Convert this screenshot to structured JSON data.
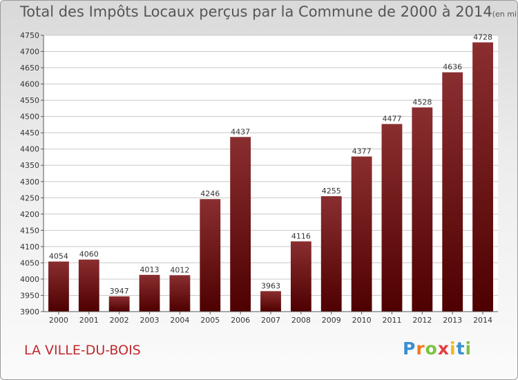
{
  "title": "Total des Impôts Locaux perçus par la Commune de 2000 à 2014",
  "unit_note": "(en milliers d'€)",
  "commune": "LA VILLE-DU-BOIS",
  "logo": {
    "letters": [
      "P",
      "r",
      "o",
      "x",
      "i",
      "t",
      "i"
    ],
    "colors": [
      "#3a8fd0",
      "#f07a1a",
      "#7cc242",
      "#e23e3e",
      "#f0b81a",
      "#3a8fd0",
      "#7cc242"
    ]
  },
  "chart_data": {
    "type": "bar",
    "categories": [
      "2000",
      "2001",
      "2002",
      "2003",
      "2004",
      "2005",
      "2006",
      "2007",
      "2008",
      "2009",
      "2010",
      "2011",
      "2012",
      "2013",
      "2014"
    ],
    "values": [
      4054,
      4060,
      3947,
      4013,
      4012,
      4246,
      4437,
      3963,
      4116,
      4255,
      4377,
      4477,
      4528,
      4636,
      4728
    ],
    "ylim": [
      3900,
      4750
    ],
    "yticks": [
      3900,
      3950,
      4000,
      4050,
      4100,
      4150,
      4200,
      4250,
      4300,
      4350,
      4400,
      4450,
      4500,
      4550,
      4600,
      4650,
      4700,
      4750
    ],
    "grid": true,
    "bar_color_top": "#8a2e30",
    "bar_color_bottom": "#4e0000"
  }
}
